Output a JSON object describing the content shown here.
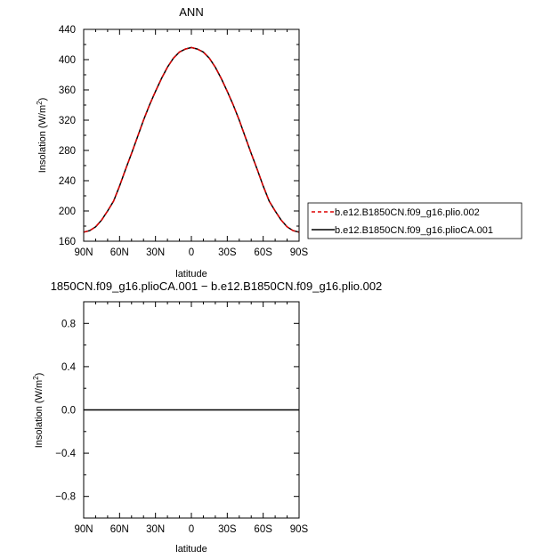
{
  "chart_data": [
    {
      "type": "line",
      "title": "ANN",
      "xlabel": "latitude",
      "ylabel": "Insolation  (W/m",
      "ylabel_sup": "2",
      "ylabel_end": ")",
      "xlim": [
        90,
        -90
      ],
      "ylim": [
        160,
        440
      ],
      "x_ticks": [
        90,
        60,
        30,
        0,
        -30,
        -60,
        -90
      ],
      "x_tick_labels": [
        "90N",
        "60N",
        "30N",
        "0",
        "30S",
        "60S",
        "90S"
      ],
      "y_ticks": [
        160,
        200,
        240,
        280,
        320,
        360,
        400,
        440
      ],
      "y_tick_labels": [
        "160",
        "200",
        "240",
        "280",
        "320",
        "360",
        "400",
        "440"
      ],
      "legend_position": "right",
      "x": [
        90,
        85,
        80,
        75,
        70,
        65,
        60,
        55,
        50,
        45,
        40,
        35,
        30,
        25,
        20,
        15,
        10,
        5,
        0,
        -5,
        -10,
        -15,
        -20,
        -25,
        -30,
        -35,
        -40,
        -45,
        -50,
        -55,
        -60,
        -65,
        -70,
        -75,
        -80,
        -85,
        -90
      ],
      "series": [
        {
          "name": "b.e12.B1850CN.f09_g16.plio.002",
          "color": "#dd0000",
          "dash": "dashed",
          "values": [
            172,
            174,
            179,
            188,
            200,
            213,
            233,
            255,
            276,
            298,
            320,
            340,
            358,
            375,
            390,
            402,
            410,
            414,
            416,
            414,
            410,
            402,
            390,
            375,
            358,
            340,
            320,
            298,
            276,
            255,
            233,
            213,
            200,
            188,
            179,
            174,
            172
          ]
        },
        {
          "name": "b.e12.B1850CN.f09_g16.plioCA.001",
          "color": "#000000",
          "dash": "solid",
          "values": [
            172,
            174,
            179,
            188,
            200,
            213,
            233,
            255,
            276,
            298,
            320,
            340,
            358,
            375,
            390,
            402,
            410,
            414,
            416,
            414,
            410,
            402,
            390,
            375,
            358,
            340,
            320,
            298,
            276,
            255,
            233,
            213,
            200,
            188,
            179,
            174,
            172
          ]
        }
      ]
    },
    {
      "type": "line",
      "title": "1850CN.f09_g16.plioCA.001 − b.e12.B1850CN.f09_g16.plio.002",
      "xlabel": "latitude",
      "ylabel": "Insolation  (W/m",
      "ylabel_sup": "2",
      "ylabel_end": ")",
      "xlim": [
        90,
        -90
      ],
      "ylim": [
        -1,
        1
      ],
      "x_ticks": [
        90,
        60,
        30,
        0,
        -30,
        -60,
        -90
      ],
      "x_tick_labels": [
        "90N",
        "60N",
        "30N",
        "0",
        "30S",
        "60S",
        "90S"
      ],
      "y_ticks": [
        -0.8,
        -0.4,
        0.0,
        0.4,
        0.8
      ],
      "y_tick_labels": [
        "−0.8",
        "−0.4",
        "0.0",
        "0.4",
        "0.8"
      ],
      "x": [
        90,
        -90
      ],
      "series": [
        {
          "color": "#000000",
          "dash": "solid",
          "values": [
            0,
            0
          ]
        }
      ]
    }
  ]
}
